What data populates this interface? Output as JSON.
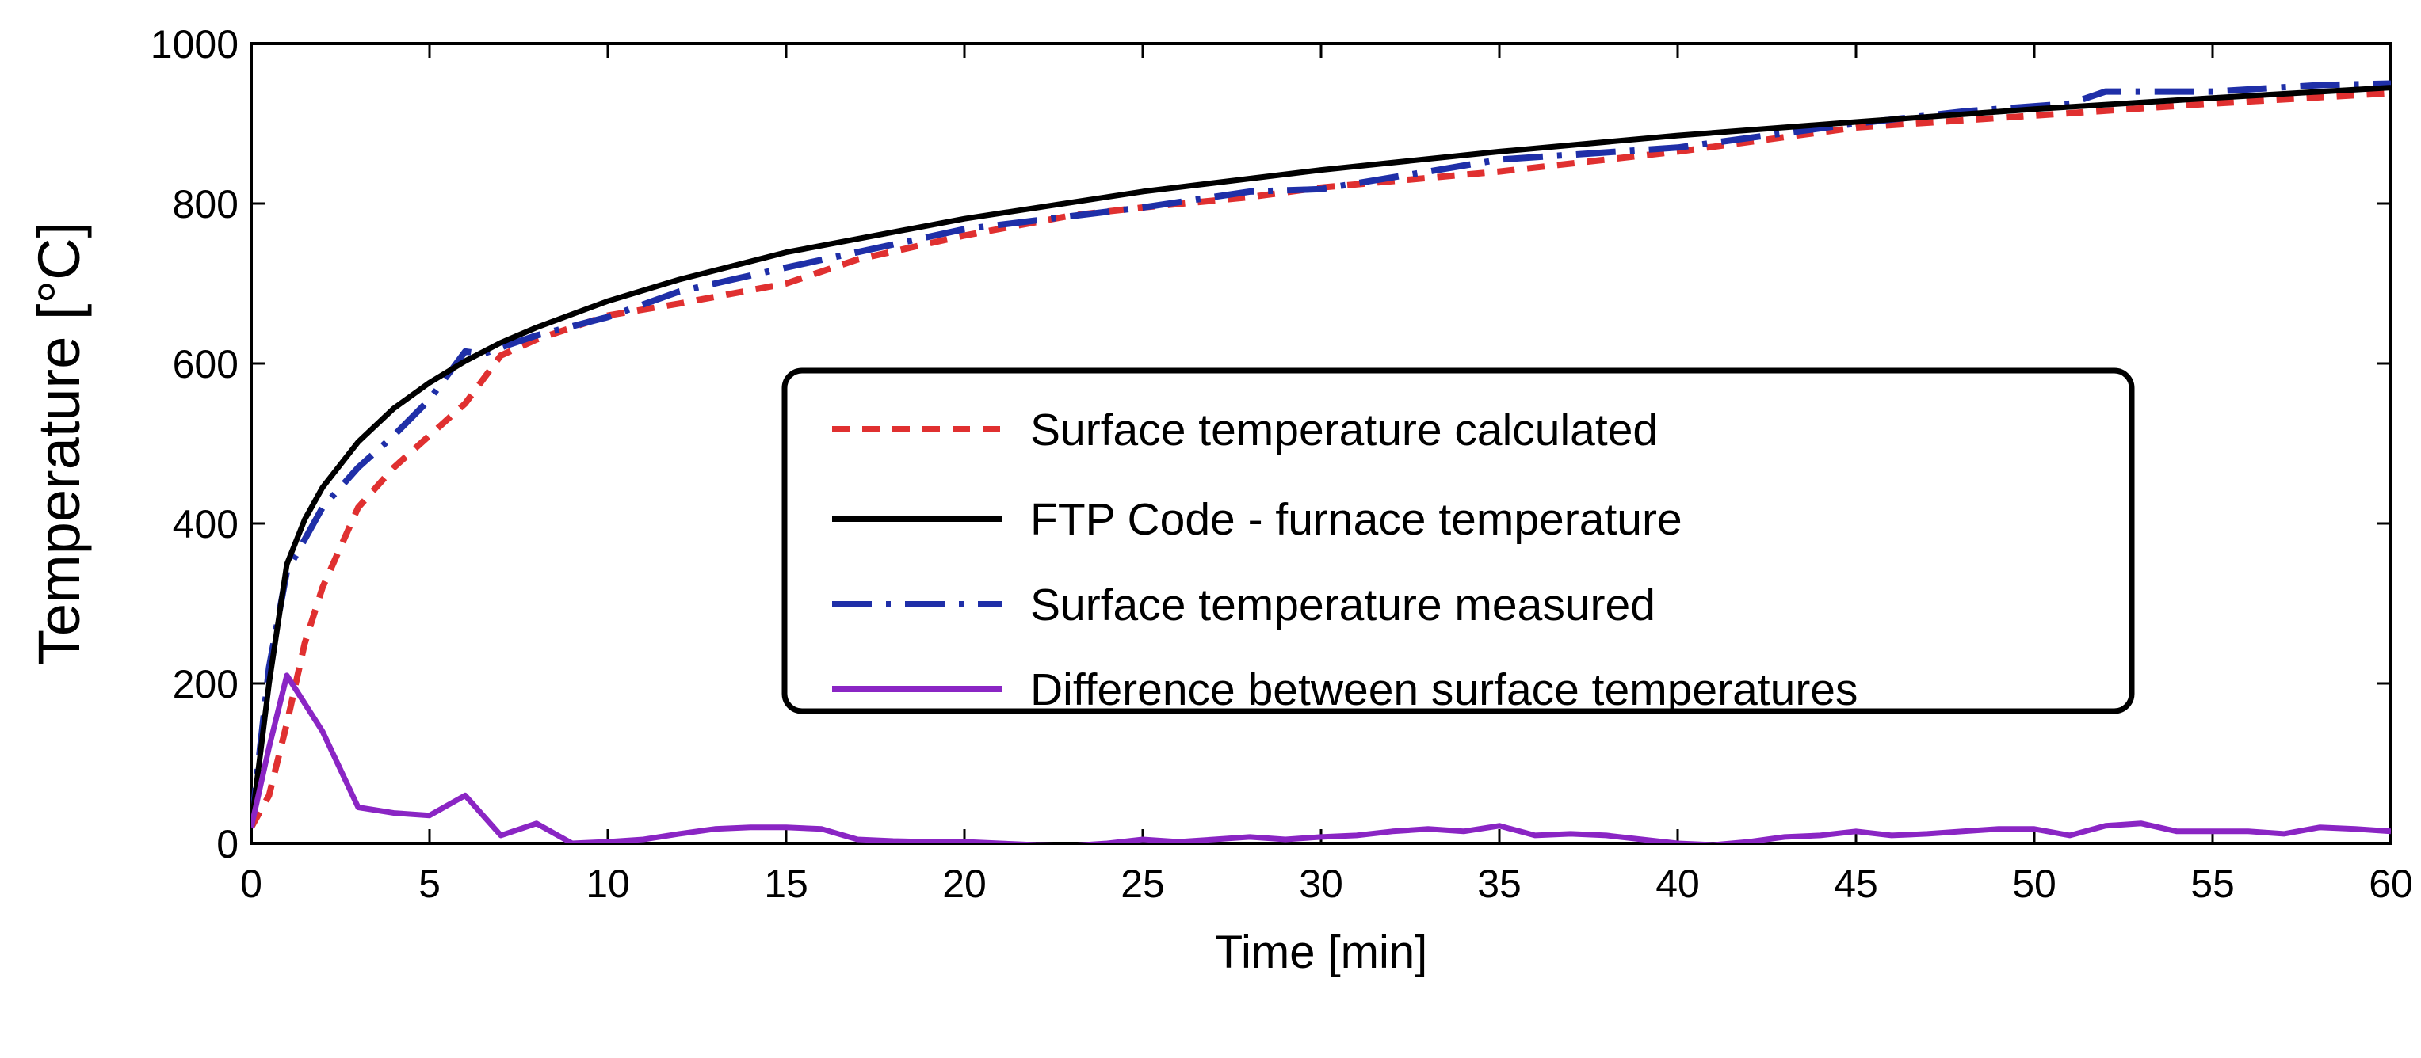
{
  "chart_data": {
    "type": "line",
    "xlabel": "Time [min]",
    "ylabel": "Temperature [°C]",
    "xlim": [
      0,
      60
    ],
    "ylim": [
      0,
      1000
    ],
    "xticks": [
      0,
      5,
      10,
      15,
      20,
      25,
      30,
      35,
      40,
      45,
      50,
      55,
      60
    ],
    "yticks": [
      0,
      200,
      400,
      600,
      800,
      1000
    ],
    "x_tick_labels": [
      "0",
      "5",
      "10",
      "15",
      "20",
      "25",
      "30",
      "35",
      "40",
      "45",
      "50",
      "55",
      "60"
    ],
    "y_tick_labels": [
      "0",
      "200",
      "400",
      "600",
      "800",
      "1000"
    ],
    "grid": false,
    "legend_position": "center-right",
    "series": [
      {
        "name": "Surface temperature calculated",
        "color": "#e03030",
        "style": "dashed",
        "x": [
          0,
          0.5,
          1,
          1.5,
          2,
          3,
          4,
          5,
          6,
          7,
          8,
          10,
          12,
          15,
          17,
          20,
          23,
          25,
          28,
          30,
          35,
          40,
          45,
          50,
          55,
          60
        ],
        "y": [
          20,
          60,
          150,
          250,
          320,
          420,
          470,
          510,
          550,
          610,
          630,
          660,
          675,
          700,
          730,
          760,
          785,
          795,
          808,
          820,
          840,
          865,
          895,
          910,
          925,
          938
        ]
      },
      {
        "name": "FTP Code - furnace temperature",
        "color": "#000000",
        "style": "solid",
        "x": [
          0,
          0.5,
          1,
          1.5,
          2,
          3,
          4,
          5,
          6,
          7,
          8,
          10,
          12,
          15,
          20,
          25,
          30,
          35,
          40,
          45,
          50,
          55,
          60
        ],
        "y": [
          20,
          200,
          349,
          405,
          445,
          502,
          544,
          576,
          603,
          626,
          645,
          678,
          705,
          739,
          781,
          815,
          842,
          865,
          885,
          902,
          918,
          932,
          945
        ]
      },
      {
        "name": "Surface temperature measured",
        "color": "#1f2fa8",
        "style": "dashdot",
        "x": [
          0,
          0.5,
          1,
          2,
          3,
          4,
          5,
          6,
          6.5,
          7,
          8,
          10,
          12,
          15,
          20,
          25,
          28,
          30,
          33,
          35,
          40,
          45,
          48,
          51,
          52,
          55,
          58,
          60
        ],
        "y": [
          20,
          220,
          340,
          420,
          470,
          510,
          555,
          615,
          612,
          620,
          635,
          658,
          690,
          720,
          768,
          795,
          815,
          818,
          840,
          855,
          870,
          900,
          915,
          925,
          940,
          940,
          948,
          950
        ]
      },
      {
        "name": "Difference between surface temperatures",
        "color": "#8a25c4",
        "style": "solid",
        "x": [
          0,
          0.5,
          1,
          2,
          3,
          4,
          5,
          6,
          7,
          8,
          9,
          10,
          11,
          12,
          13,
          14,
          15,
          16,
          17,
          18,
          19,
          20,
          21,
          22,
          23,
          24,
          25,
          26,
          27,
          28,
          29,
          30,
          31,
          32,
          33,
          34,
          35,
          36,
          37,
          38,
          39,
          40,
          41,
          42,
          43,
          44,
          45,
          46,
          47,
          48,
          49,
          50,
          51,
          52,
          53,
          54,
          55,
          56,
          57,
          58,
          59,
          60
        ],
        "y": [
          20,
          120,
          210,
          140,
          45,
          38,
          35,
          60,
          10,
          25,
          0,
          2,
          5,
          12,
          18,
          20,
          20,
          18,
          5,
          3,
          2,
          2,
          0,
          -2,
          -3,
          0,
          5,
          2,
          5,
          8,
          5,
          8,
          10,
          15,
          18,
          15,
          22,
          10,
          12,
          10,
          5,
          0,
          -2,
          2,
          8,
          10,
          15,
          10,
          12,
          15,
          18,
          18,
          10,
          22,
          25,
          15,
          15,
          15,
          12,
          20,
          18,
          15
        ]
      }
    ]
  }
}
